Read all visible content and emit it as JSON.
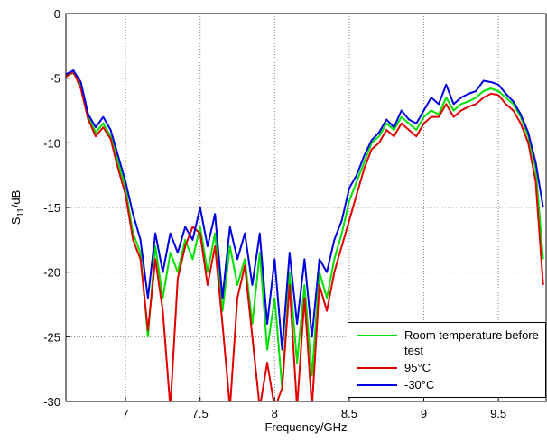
{
  "chart_data": {
    "type": "line",
    "xlabel": "Frequency/GHz",
    "ylabel_parts": [
      "S",
      "11",
      "/dB"
    ],
    "xlim": [
      6.6,
      9.82
    ],
    "ylim": [
      -30,
      0
    ],
    "xticks": [
      7,
      7.5,
      8,
      8.5,
      9,
      9.5
    ],
    "yticks": [
      -30,
      -25,
      -20,
      -15,
      -10,
      -5,
      0
    ],
    "grid": true,
    "legend": "lower right",
    "x": [
      6.6,
      6.65,
      6.7,
      6.75,
      6.8,
      6.85,
      6.9,
      6.95,
      7.0,
      7.05,
      7.1,
      7.15,
      7.2,
      7.25,
      7.3,
      7.35,
      7.4,
      7.45,
      7.5,
      7.55,
      7.6,
      7.65,
      7.7,
      7.75,
      7.8,
      7.85,
      7.9,
      7.95,
      8.0,
      8.05,
      8.1,
      8.15,
      8.2,
      8.25,
      8.3,
      8.35,
      8.4,
      8.45,
      8.5,
      8.55,
      8.6,
      8.65,
      8.7,
      8.75,
      8.8,
      8.85,
      8.9,
      8.95,
      9.0,
      9.05,
      9.1,
      9.15,
      9.2,
      9.25,
      9.3,
      9.35,
      9.4,
      9.45,
      9.5,
      9.55,
      9.6,
      9.65,
      9.7,
      9.75,
      9.8
    ],
    "series": [
      {
        "name": "Room temperature before test",
        "color": "#00e000",
        "values": [
          -4.8,
          -4.6,
          -5.5,
          -8,
          -9.2,
          -8.5,
          -9.5,
          -11.5,
          -13.5,
          -17,
          -18.5,
          -25,
          -18,
          -22,
          -18.5,
          -20,
          -17.5,
          -19,
          -16.5,
          -20,
          -17,
          -23,
          -18,
          -21,
          -19,
          -24,
          -18.5,
          -26,
          -22,
          -29,
          -20,
          -27,
          -21,
          -28,
          -20,
          -22,
          -19,
          -17,
          -14.5,
          -13,
          -11.5,
          -10,
          -9.5,
          -8.5,
          -9,
          -8,
          -8.5,
          -9,
          -8,
          -7.5,
          -7.8,
          -6.5,
          -7.5,
          -7,
          -6.8,
          -6.5,
          -6,
          -5.8,
          -6,
          -6.5,
          -7,
          -8,
          -9.5,
          -12,
          -19
        ]
      },
      {
        "name": "95°C",
        "color": "#e00000",
        "values": [
          -4.9,
          -4.5,
          -5.8,
          -8.2,
          -9.5,
          -8.8,
          -9.7,
          -12,
          -14,
          -17.5,
          -19,
          -24.5,
          -19,
          -23,
          -30.5,
          -20.5,
          -18,
          -16.5,
          -17,
          -21,
          -18,
          -24,
          -30.5,
          -22,
          -19.5,
          -25,
          -30.5,
          -27,
          -30.5,
          -29,
          -21,
          -30.5,
          -22,
          -30.5,
          -21,
          -23,
          -20,
          -18,
          -16,
          -14,
          -12,
          -10.5,
          -10,
          -9,
          -9.5,
          -8.5,
          -9,
          -9.5,
          -8.5,
          -8,
          -8,
          -7,
          -8,
          -7.5,
          -7.2,
          -7,
          -6.5,
          -6.2,
          -6.3,
          -7,
          -7.5,
          -8.5,
          -10,
          -13,
          -21
        ]
      },
      {
        "name": "-30°C",
        "color": "#0000e0",
        "values": [
          -4.7,
          -4.4,
          -5.3,
          -7.8,
          -8.8,
          -8,
          -9,
          -11,
          -13,
          -15.5,
          -17.5,
          -22,
          -17,
          -20,
          -17,
          -18.5,
          -16.5,
          -17.5,
          -15,
          -18,
          -15.5,
          -22,
          -16.5,
          -19,
          -17,
          -21,
          -17,
          -24,
          -19,
          -26,
          -18.5,
          -24,
          -19,
          -25,
          -19,
          -20,
          -17.5,
          -16,
          -13.5,
          -12.5,
          -11,
          -9.8,
          -9.2,
          -8.2,
          -8.8,
          -7.5,
          -8.2,
          -8.5,
          -7.5,
          -6.5,
          -7,
          -5.5,
          -7,
          -6.5,
          -6.2,
          -6,
          -5.2,
          -5.3,
          -5.5,
          -6.2,
          -6.8,
          -7.8,
          -9.2,
          -11.5,
          -15
        ]
      }
    ]
  }
}
